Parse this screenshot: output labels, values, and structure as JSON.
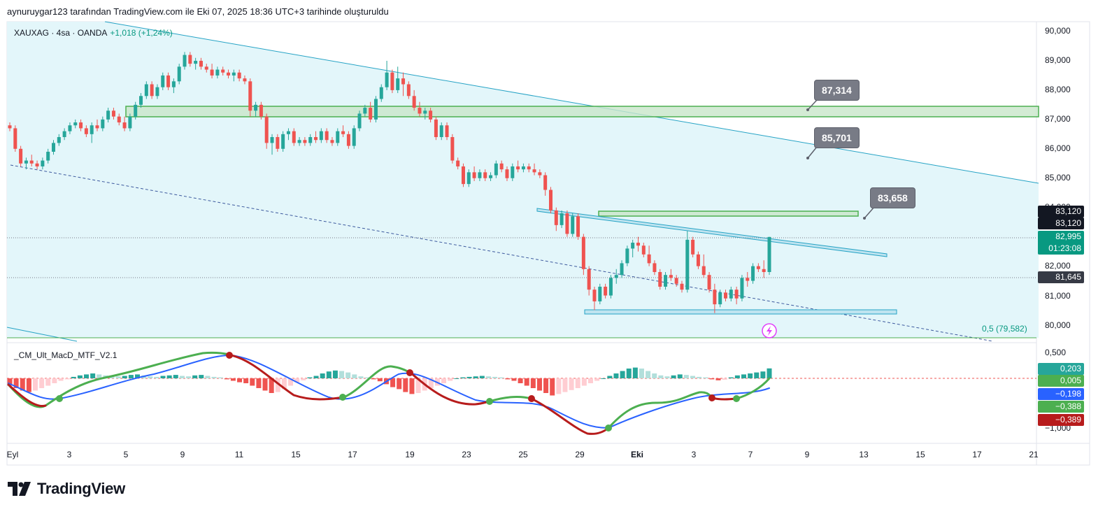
{
  "header": {
    "caption": "aynuruygar123 tarafından TradingView.com ile Eki 07, 2025 18:36 UTC+3 tarihinde oluşturuldu"
  },
  "legend": {
    "symbol": "XAUXAG · 4sa · OANDA",
    "change": "+1,018 (+1,24%)"
  },
  "indicator": {
    "name": "_CM_Ult_MacD_MTF_V2.1"
  },
  "logo": {
    "text": "TradingView"
  },
  "price_axis": {
    "ticks": [
      "90,000",
      "89,000",
      "88,000",
      "87,000",
      "86,000",
      "85,000",
      "82,000",
      "81,000",
      "80,000"
    ],
    "partial_tick": "84,000",
    "labels": [
      {
        "name": "price-label-83120-a",
        "text": "83,120",
        "color": "#131722"
      },
      {
        "name": "price-label-83120-b",
        "text": "83,120",
        "color": "#131722"
      },
      {
        "name": "price-label-last",
        "text": "82,995",
        "color": "#089981"
      },
      {
        "name": "price-label-countdown",
        "text": "01:23:08",
        "color": "#089981"
      },
      {
        "name": "price-label-81645",
        "text": "81,645",
        "color": "#363a45"
      }
    ]
  },
  "indicator_axis": {
    "ticks": [
      "0,500",
      "−1,000"
    ],
    "labels": [
      {
        "name": "ind-label-0203",
        "text": "0,203",
        "color": "#26a69a"
      },
      {
        "name": "ind-label-0005",
        "text": "0,005",
        "color": "#4caf50"
      },
      {
        "name": "ind-label-m0198",
        "text": "−0,198",
        "color": "#2962ff"
      },
      {
        "name": "ind-label-m0388",
        "text": "−0,388",
        "color": "#4caf50"
      },
      {
        "name": "ind-label-m0389",
        "text": "−0,389",
        "color": "#b71c1c"
      }
    ]
  },
  "time_axis": {
    "ticks": [
      "Eyl",
      "3",
      "5",
      "9",
      "11",
      "15",
      "17",
      "19",
      "23",
      "25",
      "29",
      "Eki",
      "3",
      "7",
      "9",
      "13",
      "15",
      "17",
      "21"
    ]
  },
  "callouts": [
    "87,314",
    "85,701",
    "83,658"
  ],
  "fib_label": "0,5 (79,582)",
  "colors": {
    "up": "#26a69a",
    "down": "#ef5350",
    "channel_fill": "#e3f6fa",
    "channel_line": "#26a3c5",
    "zone": "#4caf50",
    "macd": "#2962ff",
    "signal_up": "#4caf50",
    "signal_down": "#b71c1c"
  },
  "candles_4h": [
    [
      86.8,
      86.9,
      86.6,
      86.7
    ],
    [
      86.7,
      86.8,
      85.9,
      86.0
    ],
    [
      86.0,
      86.1,
      85.4,
      85.5
    ],
    [
      85.5,
      85.7,
      85.3,
      85.6
    ],
    [
      85.6,
      85.8,
      85.4,
      85.5
    ],
    [
      85.5,
      85.6,
      85.3,
      85.4
    ],
    [
      85.4,
      85.7,
      85.3,
      85.6
    ],
    [
      85.6,
      86.0,
      85.5,
      85.9
    ],
    [
      85.9,
      86.3,
      85.8,
      86.2
    ],
    [
      86.2,
      86.5,
      86.1,
      86.4
    ],
    [
      86.4,
      86.7,
      86.3,
      86.6
    ],
    [
      86.6,
      86.9,
      86.5,
      86.8
    ],
    [
      86.8,
      87.0,
      86.7,
      86.9
    ],
    [
      86.9,
      87.0,
      86.6,
      86.7
    ],
    [
      86.7,
      86.8,
      86.4,
      86.5
    ],
    [
      86.5,
      86.9,
      86.2,
      86.8
    ],
    [
      86.8,
      87.0,
      86.6,
      86.7
    ],
    [
      86.7,
      87.1,
      86.6,
      87.0
    ],
    [
      87.0,
      87.4,
      86.9,
      87.3
    ],
    [
      87.3,
      87.4,
      87.0,
      87.1
    ],
    [
      87.1,
      87.2,
      86.8,
      86.9
    ],
    [
      86.9,
      87.1,
      86.6,
      86.7
    ],
    [
      86.7,
      87.2,
      86.6,
      87.1
    ],
    [
      87.1,
      87.6,
      87.0,
      87.5
    ],
    [
      87.5,
      87.9,
      87.4,
      87.8
    ],
    [
      87.8,
      88.3,
      87.7,
      88.2
    ],
    [
      88.2,
      88.3,
      87.7,
      87.8
    ],
    [
      87.8,
      88.2,
      87.7,
      88.1
    ],
    [
      88.1,
      88.6,
      88.0,
      88.5
    ],
    [
      88.5,
      88.6,
      88.0,
      88.1
    ],
    [
      88.1,
      88.4,
      87.9,
      88.3
    ],
    [
      88.3,
      88.9,
      88.2,
      88.8
    ],
    [
      88.8,
      89.3,
      88.7,
      89.2
    ],
    [
      89.2,
      89.3,
      88.8,
      88.9
    ],
    [
      88.9,
      89.1,
      88.7,
      89.0
    ],
    [
      89.0,
      89.1,
      88.7,
      88.8
    ],
    [
      88.8,
      88.9,
      88.6,
      88.7
    ],
    [
      88.7,
      88.9,
      88.4,
      88.5
    ],
    [
      88.5,
      88.8,
      88.4,
      88.7
    ],
    [
      88.7,
      88.8,
      88.5,
      88.6
    ],
    [
      88.6,
      88.7,
      88.4,
      88.5
    ],
    [
      88.5,
      88.7,
      88.3,
      88.6
    ],
    [
      88.6,
      88.7,
      88.3,
      88.4
    ],
    [
      88.4,
      88.5,
      88.2,
      88.3
    ],
    [
      88.3,
      88.4,
      87.1,
      87.3
    ],
    [
      87.3,
      87.6,
      87.1,
      87.5
    ],
    [
      87.5,
      87.6,
      87.0,
      87.1
    ],
    [
      87.1,
      87.2,
      86.0,
      86.2
    ],
    [
      86.2,
      86.5,
      85.8,
      86.4
    ],
    [
      86.4,
      86.5,
      85.9,
      86.0
    ],
    [
      86.0,
      86.6,
      85.9,
      86.5
    ],
    [
      86.5,
      86.7,
      86.3,
      86.6
    ],
    [
      86.6,
      86.7,
      86.1,
      86.2
    ],
    [
      86.2,
      86.4,
      86.1,
      86.3
    ],
    [
      86.3,
      86.4,
      86.1,
      86.2
    ],
    [
      86.2,
      86.5,
      86.1,
      86.4
    ],
    [
      86.4,
      86.6,
      86.2,
      86.3
    ],
    [
      86.3,
      86.7,
      86.2,
      86.6
    ],
    [
      86.6,
      86.7,
      86.2,
      86.3
    ],
    [
      86.3,
      86.4,
      86.1,
      86.2
    ],
    [
      86.2,
      86.7,
      86.1,
      86.6
    ],
    [
      86.6,
      86.8,
      86.4,
      86.5
    ],
    [
      86.5,
      86.6,
      86.0,
      86.1
    ],
    [
      86.1,
      86.8,
      86.0,
      86.7
    ],
    [
      86.7,
      87.3,
      86.6,
      87.2
    ],
    [
      87.2,
      87.5,
      87.1,
      87.4
    ],
    [
      87.4,
      87.6,
      86.9,
      87.0
    ],
    [
      87.0,
      87.8,
      86.9,
      87.7
    ],
    [
      87.7,
      88.2,
      87.6,
      88.1
    ],
    [
      88.1,
      89.0,
      88.0,
      88.6
    ],
    [
      88.6,
      88.7,
      87.9,
      88.0
    ],
    [
      88.0,
      88.8,
      87.9,
      88.4
    ],
    [
      88.4,
      88.6,
      87.8,
      88.2
    ],
    [
      88.2,
      88.3,
      87.7,
      87.8
    ],
    [
      87.8,
      88.0,
      87.3,
      87.4
    ],
    [
      87.4,
      87.6,
      87.1,
      87.2
    ],
    [
      87.2,
      87.4,
      87.0,
      87.3
    ],
    [
      87.3,
      87.4,
      86.9,
      87.0
    ],
    [
      87.0,
      87.1,
      86.3,
      86.4
    ],
    [
      86.4,
      86.9,
      86.3,
      86.8
    ],
    [
      86.8,
      86.9,
      86.3,
      86.4
    ],
    [
      86.4,
      86.5,
      85.5,
      85.6
    ],
    [
      85.6,
      85.7,
      85.3,
      85.4
    ],
    [
      85.4,
      85.5,
      84.7,
      84.8
    ],
    [
      84.8,
      85.3,
      84.7,
      85.2
    ],
    [
      85.2,
      85.4,
      84.9,
      85.0
    ],
    [
      85.0,
      85.3,
      84.9,
      85.2
    ],
    [
      85.2,
      85.3,
      84.9,
      85.0
    ],
    [
      85.0,
      85.2,
      84.9,
      85.1
    ],
    [
      85.1,
      85.6,
      85.0,
      85.5
    ],
    [
      85.5,
      85.6,
      85.2,
      85.3
    ],
    [
      85.3,
      85.4,
      84.9,
      85.0
    ],
    [
      85.0,
      85.5,
      84.9,
      85.4
    ],
    [
      85.4,
      85.6,
      85.2,
      85.3
    ],
    [
      85.3,
      85.5,
      85.2,
      85.4
    ],
    [
      85.4,
      85.5,
      85.2,
      85.3
    ],
    [
      85.3,
      85.5,
      85.1,
      85.2
    ],
    [
      85.2,
      85.3,
      85.0,
      85.1
    ],
    [
      85.1,
      85.2,
      84.4,
      84.6
    ],
    [
      84.6,
      84.7,
      83.8,
      83.9
    ],
    [
      83.9,
      84.0,
      83.2,
      83.4
    ],
    [
      83.4,
      83.9,
      83.3,
      83.8
    ],
    [
      83.8,
      83.9,
      83.0,
      83.1
    ],
    [
      83.1,
      83.8,
      83.0,
      83.7
    ],
    [
      83.7,
      83.8,
      82.9,
      83.0
    ],
    [
      83.0,
      83.1,
      81.7,
      81.9
    ],
    [
      81.9,
      82.0,
      81.0,
      81.2
    ],
    [
      81.2,
      81.3,
      80.5,
      80.8
    ],
    [
      80.8,
      81.4,
      80.7,
      81.3
    ],
    [
      81.3,
      81.4,
      80.9,
      81.0
    ],
    [
      81.0,
      81.7,
      80.9,
      81.6
    ],
    [
      81.6,
      81.9,
      81.4,
      81.7
    ],
    [
      81.7,
      82.2,
      81.6,
      82.1
    ],
    [
      82.1,
      82.7,
      82.0,
      82.6
    ],
    [
      82.6,
      82.9,
      82.3,
      82.8
    ],
    [
      82.8,
      83.0,
      82.5,
      82.7
    ],
    [
      82.7,
      82.8,
      82.3,
      82.4
    ],
    [
      82.4,
      82.7,
      82.0,
      82.1
    ],
    [
      82.1,
      82.2,
      81.7,
      81.8
    ],
    [
      81.8,
      81.9,
      81.2,
      81.3
    ],
    [
      81.3,
      81.8,
      81.2,
      81.7
    ],
    [
      81.7,
      81.9,
      81.5,
      81.6
    ],
    [
      81.6,
      81.7,
      81.3,
      81.4
    ],
    [
      81.4,
      81.5,
      81.1,
      81.2
    ],
    [
      81.2,
      83.2,
      81.1,
      82.9
    ],
    [
      82.9,
      83.0,
      82.3,
      82.4
    ],
    [
      82.4,
      82.5,
      81.9,
      82.0
    ],
    [
      82.0,
      82.4,
      81.6,
      81.7
    ],
    [
      81.7,
      81.8,
      81.1,
      81.2
    ],
    [
      81.2,
      81.4,
      80.4,
      80.7
    ],
    [
      80.7,
      81.2,
      80.6,
      81.1
    ],
    [
      81.1,
      81.2,
      80.8,
      80.9
    ],
    [
      80.9,
      81.3,
      80.8,
      81.2
    ],
    [
      81.2,
      81.3,
      80.7,
      80.9
    ],
    [
      80.9,
      81.7,
      80.8,
      81.6
    ],
    [
      81.6,
      81.8,
      81.3,
      81.5
    ],
    [
      81.5,
      82.1,
      81.4,
      82.0
    ],
    [
      82.0,
      82.1,
      81.8,
      81.9
    ],
    [
      81.9,
      82.2,
      81.6,
      81.8
    ],
    [
      81.8,
      83.0,
      81.7,
      82.995
    ]
  ],
  "macd_hist": [
    -0.15,
    -0.2,
    -0.25,
    -0.28,
    -0.25,
    -0.2,
    -0.15,
    -0.1,
    -0.05,
    -0.02,
    0.03,
    0.06,
    0.08,
    0.1,
    0.08,
    0.06,
    0.05,
    0.04,
    0.05,
    0.07,
    0.08,
    0.06,
    0.04,
    0.03,
    0.05,
    0.06,
    0.07,
    0.05,
    0.04,
    0.06,
    0.07,
    0.05,
    0.03,
    0.02,
    -0.02,
    -0.05,
    -0.08,
    -0.1,
    -0.15,
    -0.2,
    -0.25,
    -0.3,
    -0.28,
    -0.22,
    -0.15,
    -0.08,
    -0.04,
    0.02,
    0.05,
    0.1,
    0.14,
    0.16,
    0.15,
    0.12,
    0.08,
    0.04,
    0.02,
    -0.02,
    -0.06,
    -0.12,
    -0.18,
    -0.22,
    -0.28,
    -0.32,
    -0.3,
    -0.25,
    -0.2,
    -0.15,
    -0.1,
    -0.05,
    0.0,
    0.02,
    0.03,
    0.04,
    0.05,
    0.04,
    0.03,
    0.02,
    -0.02,
    -0.05,
    -0.1,
    -0.15,
    -0.2,
    -0.25,
    -0.3,
    -0.35,
    -0.32,
    -0.28,
    -0.24,
    -0.2,
    -0.15,
    -0.1,
    -0.05,
    0.0,
    0.05,
    0.1,
    0.15,
    0.2,
    0.22,
    0.2,
    0.15,
    0.1,
    0.06,
    0.04,
    0.06,
    0.08,
    0.07,
    0.05,
    0.03,
    0.02,
    -0.02,
    -0.04,
    -0.03,
    0.02,
    0.06,
    0.08,
    0.1,
    0.12,
    0.14,
    0.203
  ]
}
